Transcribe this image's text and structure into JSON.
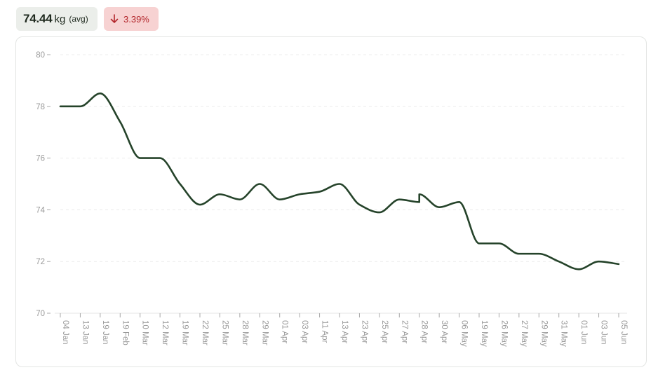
{
  "summary": {
    "avg_value": "74.44",
    "avg_unit": "kg",
    "avg_note": "(avg)",
    "change_text": "3.39%",
    "change_icon": "arrow-down-icon",
    "change_color": "#b3262b",
    "change_bg": "#f7d2d2"
  },
  "chart_data": {
    "type": "line",
    "line_color": "#25432a",
    "grid": true,
    "ylim": [
      70,
      80
    ],
    "yticks": [
      "70",
      "72",
      "74",
      "76",
      "78",
      "80"
    ],
    "categories": [
      "04 Jan",
      "13 Jan",
      "19 Jan",
      "19 Feb",
      "10 Mar",
      "12 Mar",
      "19 Mar",
      "22 Mar",
      "25 Mar",
      "28 Mar",
      "29 Mar",
      "01 Apr",
      "03 Apr",
      "11 Apr",
      "13 Apr",
      "23 Apr",
      "25 Apr",
      "27 Apr",
      "28 Apr",
      "30 Apr",
      "06 May",
      "19 May",
      "26 May",
      "27 May",
      "29 May",
      "31 May",
      "01 Jun",
      "03 Jun",
      "05 Jun"
    ],
    "values": [
      78.0,
      78.0,
      78.5,
      77.4,
      76.0,
      76.0,
      75.0,
      74.2,
      74.6,
      74.4,
      75.0,
      74.4,
      74.6,
      74.7,
      75.0,
      74.2,
      73.9,
      74.4,
      74.3,
      74.1,
      74.3,
      72.7,
      72.7,
      72.3,
      72.3,
      72.0,
      71.7,
      72.0,
      71.9
    ],
    "extra_points": [
      {
        "after_index": 18,
        "value": 74.6
      }
    ]
  }
}
